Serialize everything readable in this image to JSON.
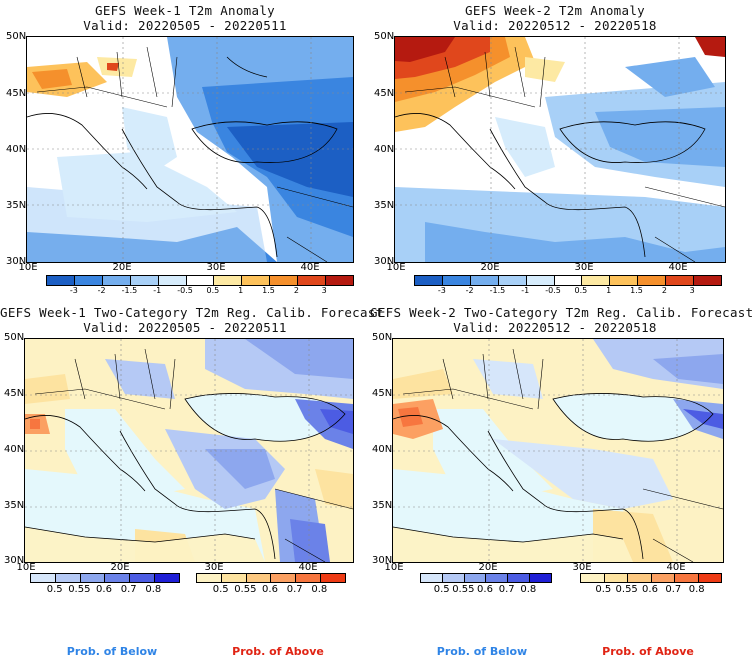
{
  "panels": [
    {
      "title": "GEFS Week-1 T2m Anomaly",
      "valid": "Valid: 20220505 - 20220511"
    },
    {
      "title": "GEFS Week-2 T2m Anomaly",
      "valid": "Valid: 20220512 - 20220518"
    },
    {
      "title": "GEFS Week-1 Two-Category T2m Reg. Calib. Forecast",
      "valid": "Valid: 20220505 - 20220511"
    },
    {
      "title": "GEFS Week-2 Two-Category T2m Reg. Calib. Forecast",
      "valid": "Valid: 20220512 - 20220518"
    }
  ],
  "axes": {
    "lat_labels": [
      "50N",
      "45N",
      "40N",
      "35N",
      "30N"
    ],
    "lon_labels": [
      "10E",
      "20E",
      "30E",
      "40E"
    ]
  },
  "anomaly_colorbar": {
    "labels": [
      "-3",
      "-2",
      "-1.5",
      "-1",
      "-0.5",
      "0.5",
      "1",
      "1.5",
      "2",
      "3"
    ],
    "colors": [
      "#1c5fc4",
      "#3a85e0",
      "#74aeee",
      "#a8d0f7",
      "#d6ecfc",
      "#ffffff",
      "#fde9a3",
      "#fdc25b",
      "#f5902c",
      "#e0471c",
      "#b51a10"
    ]
  },
  "prob_below_colorbar": {
    "labels": [
      "0.5",
      "0.55",
      "0.6",
      "0.7",
      "0.8"
    ],
    "colors": [
      "#d6e6fa",
      "#b5c9f5",
      "#8da7ee",
      "#6b82e8",
      "#4c5ce3",
      "#1f1fd6"
    ]
  },
  "prob_above_colorbar": {
    "labels": [
      "0.5",
      "0.55",
      "0.6",
      "0.7",
      "0.8"
    ],
    "colors": [
      "#fdf2c4",
      "#fde3a0",
      "#fcc880",
      "#fba062",
      "#f7763f",
      "#ee3b14"
    ]
  },
  "footer": {
    "below": "Prob. of Below",
    "above": "Prob. of Above",
    "below_color": "#2f84e6",
    "above_color": "#e02414"
  },
  "fills": {
    "sea_light": "#d8f0fc",
    "sea_prob": "#e4f8fc"
  }
}
